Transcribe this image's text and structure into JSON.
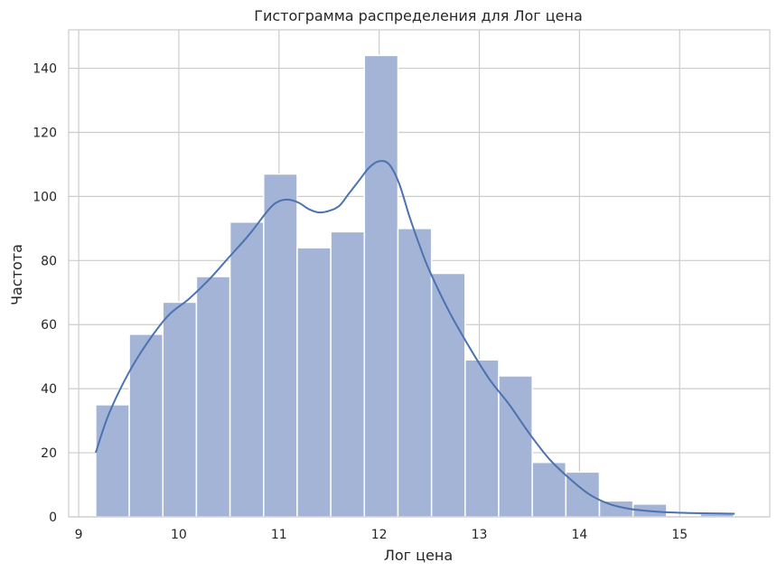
{
  "chart_data": {
    "type": "bar",
    "subtype": "histogram_with_kde",
    "title": "Гистограмма распределения для Лог цена",
    "xlabel": "Лог цена",
    "ylabel": "Частота",
    "xlim": [
      8.9,
      15.9
    ],
    "ylim": [
      0,
      152
    ],
    "xticks": [
      "9",
      "10",
      "11",
      "12",
      "13",
      "14",
      "15"
    ],
    "yticks": [
      "0",
      "20",
      "40",
      "60",
      "80",
      "100",
      "120",
      "140"
    ],
    "grid": true,
    "bins": {
      "start": 9.17,
      "width": 0.3353,
      "values": [
        35,
        57,
        67,
        75,
        92,
        107,
        84,
        89,
        144,
        90,
        76,
        49,
        44,
        17,
        14,
        5,
        4,
        0,
        1
      ]
    },
    "kde": {
      "x": [
        9.17,
        9.3,
        9.5,
        9.7,
        9.9,
        10.1,
        10.3,
        10.5,
        10.7,
        10.9,
        11.0,
        11.1,
        11.2,
        11.3,
        11.4,
        11.5,
        11.6,
        11.7,
        11.8,
        11.9,
        12.0,
        12.1,
        12.2,
        12.3,
        12.4,
        12.5,
        12.7,
        12.9,
        13.1,
        13.3,
        13.5,
        13.7,
        13.9,
        14.1,
        14.3,
        14.5,
        14.7,
        14.9,
        15.1,
        15.3,
        15.55
      ],
      "y": [
        20,
        32,
        45,
        55,
        63,
        68,
        74,
        81,
        88,
        96,
        98.5,
        99,
        98,
        96,
        95,
        95.5,
        97,
        101,
        105,
        109,
        111,
        110,
        104,
        94,
        85,
        77,
        64,
        53,
        43,
        35,
        26,
        18,
        12,
        7,
        4,
        2.5,
        1.8,
        1.4,
        1.2,
        1.1,
        1
      ]
    },
    "colors": {
      "bar_fill": "#a3b4d6",
      "bar_edge": "#ffffff",
      "kde_line": "#4c72b0",
      "grid": "#cccccc",
      "text": "#262626"
    }
  }
}
